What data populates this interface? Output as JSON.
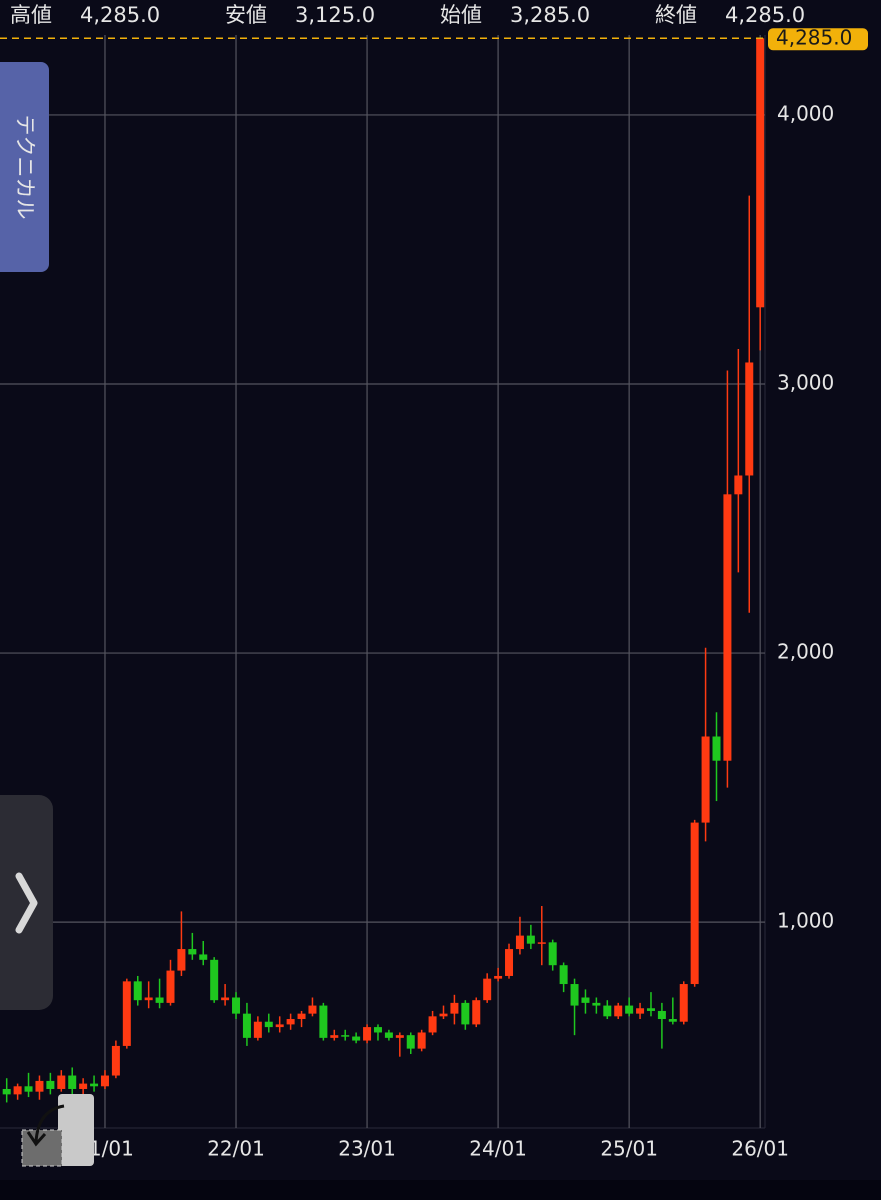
{
  "header": [
    {
      "label": "高値",
      "value": "4,285.0"
    },
    {
      "label": "安値",
      "value": "3,125.0"
    },
    {
      "label": "始値",
      "value": "3,285.0"
    },
    {
      "label": "終値",
      "value": "4,285.0"
    }
  ],
  "side_tab": "テクニカル",
  "chart_data": {
    "type": "candlestick",
    "categories": [
      null,
      null,
      null,
      null,
      null,
      null,
      null,
      null,
      null,
      "21/01",
      null,
      null,
      null,
      null,
      null,
      null,
      null,
      null,
      null,
      null,
      null,
      "22/01",
      null,
      null,
      null,
      null,
      null,
      null,
      null,
      null,
      null,
      null,
      null,
      "23/01",
      null,
      null,
      null,
      null,
      null,
      null,
      null,
      null,
      null,
      null,
      null,
      "24/01",
      null,
      null,
      null,
      null,
      null,
      null,
      null,
      null,
      null,
      null,
      null,
      "25/01",
      null,
      null,
      null,
      null,
      null,
      null,
      null,
      null,
      null,
      null,
      null,
      "26/01"
    ],
    "open": [
      380,
      360,
      390,
      370,
      410,
      380,
      430,
      380,
      400,
      390,
      430,
      540,
      780,
      710,
      720,
      700,
      820,
      900,
      880,
      860,
      710,
      720,
      660,
      570,
      630,
      610,
      620,
      640,
      660,
      690,
      570,
      580,
      575,
      560,
      610,
      590,
      570,
      580,
      530,
      590,
      650,
      660,
      700,
      620,
      710,
      790,
      800,
      900,
      950,
      920,
      925,
      840,
      770,
      720,
      700,
      690,
      650,
      690,
      660,
      680,
      670,
      640,
      630,
      770,
      1370,
      1690,
      1600,
      2590,
      2660,
      3285
    ],
    "high": [
      420,
      400,
      440,
      430,
      440,
      450,
      460,
      420,
      430,
      450,
      560,
      790,
      800,
      780,
      790,
      860,
      1040,
      960,
      930,
      870,
      770,
      740,
      700,
      650,
      660,
      650,
      660,
      670,
      720,
      700,
      600,
      600,
      590,
      620,
      620,
      600,
      590,
      590,
      600,
      670,
      690,
      730,
      710,
      720,
      810,
      830,
      920,
      1020,
      990,
      1060,
      935,
      850,
      790,
      750,
      720,
      710,
      700,
      720,
      700,
      740,
      700,
      720,
      780,
      1380,
      2020,
      1780,
      3050,
      3130,
      3700,
      4285
    ],
    "low": [
      330,
      340,
      350,
      340,
      360,
      370,
      360,
      350,
      370,
      380,
      420,
      530,
      690,
      680,
      680,
      690,
      800,
      860,
      840,
      700,
      690,
      640,
      540,
      560,
      590,
      590,
      600,
      610,
      650,
      560,
      560,
      560,
      550,
      550,
      560,
      560,
      500,
      510,
      520,
      580,
      640,
      620,
      600,
      610,
      700,
      780,
      790,
      880,
      900,
      840,
      820,
      740,
      580,
      660,
      660,
      640,
      640,
      650,
      640,
      650,
      530,
      620,
      620,
      760,
      1300,
      1450,
      1500,
      2300,
      2150,
      3125
    ],
    "close": [
      360,
      390,
      370,
      410,
      380,
      430,
      380,
      400,
      390,
      430,
      540,
      780,
      710,
      720,
      700,
      820,
      900,
      880,
      860,
      710,
      720,
      660,
      570,
      630,
      610,
      620,
      640,
      660,
      690,
      570,
      580,
      575,
      560,
      610,
      590,
      570,
      580,
      530,
      590,
      650,
      660,
      700,
      620,
      710,
      790,
      800,
      900,
      950,
      920,
      925,
      840,
      770,
      690,
      700,
      690,
      650,
      690,
      660,
      680,
      670,
      640,
      630,
      770,
      1370,
      1690,
      1600,
      2590,
      2660,
      3080,
      4285
    ],
    "up_color": "#ff3a12",
    "down_color": "#1fc81f",
    "ylim": [
      235,
      4297
    ],
    "yticks": [
      {
        "value": 1000,
        "label": "1,000"
      },
      {
        "value": 2000,
        "label": "2,000"
      },
      {
        "value": 3000,
        "label": "3,000"
      },
      {
        "value": 4000,
        "label": "4,000"
      }
    ],
    "grid": true,
    "last_price": {
      "value": 4285,
      "label": "4,285.0"
    },
    "last_price_color": "#f2b10a"
  }
}
